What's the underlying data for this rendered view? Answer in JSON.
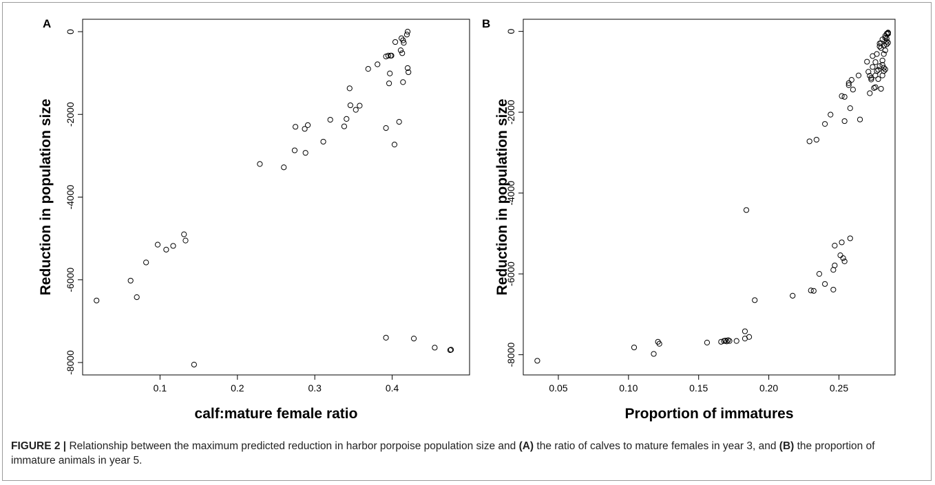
{
  "figure": {
    "caption_label": "FIGURE 2 |",
    "caption_parts": [
      {
        "text": " Relationship between the maximum predicted reduction in harbor porpoise population size and ",
        "bold": false
      },
      {
        "text": "(A)",
        "bold": true
      },
      {
        "text": " the ratio of calves to mature females in year 3, and ",
        "bold": false
      },
      {
        "text": "(B)",
        "bold": true
      },
      {
        "text": " the proportion of immature animals in year 5.",
        "bold": false
      }
    ]
  },
  "chart_data": [
    {
      "type": "scatter",
      "panel": "A",
      "title": "",
      "xlabel": "calf:mature female ratio",
      "ylabel": "Reduction in population size",
      "xlim": [
        0.0,
        0.5
      ],
      "ylim": [
        -8300,
        300
      ],
      "xticks": [
        0.1,
        0.2,
        0.3,
        0.4
      ],
      "yticks": [
        0,
        -2000,
        -4000,
        -6000,
        -8000
      ],
      "grid": false,
      "marker": "open-circle",
      "x": [
        0.018,
        0.062,
        0.07,
        0.082,
        0.097,
        0.108,
        0.117,
        0.131,
        0.133,
        0.144,
        0.229,
        0.26,
        0.274,
        0.275,
        0.287,
        0.288,
        0.291,
        0.311,
        0.32,
        0.338,
        0.341,
        0.345,
        0.346,
        0.353,
        0.358,
        0.369,
        0.381,
        0.392,
        0.392,
        0.395,
        0.396,
        0.397,
        0.398,
        0.399,
        0.403,
        0.404,
        0.409,
        0.411,
        0.412,
        0.413,
        0.414,
        0.414,
        0.415,
        0.419,
        0.42,
        0.42,
        0.421,
        0.392,
        0.428,
        0.455,
        0.475,
        0.476
      ],
      "y": [
        -6500,
        -6020,
        -6420,
        -5580,
        -5150,
        -5270,
        -5180,
        -4900,
        -5050,
        -8050,
        -3200,
        -3280,
        -2870,
        -2300,
        -2350,
        -2930,
        -2260,
        -2660,
        -2130,
        -2290,
        -2110,
        -1370,
        -1780,
        -1890,
        -1790,
        -900,
        -790,
        -2330,
        -600,
        -580,
        -1250,
        -1010,
        -580,
        -580,
        -2730,
        -250,
        -2180,
        -450,
        -160,
        -520,
        -1220,
        -210,
        -270,
        -70,
        0,
        -880,
        -980,
        -7400,
        -7420,
        -7640,
        -7700,
        -7690
      ]
    },
    {
      "type": "scatter",
      "panel": "B",
      "title": "",
      "xlabel": "Proportion of immatures",
      "ylabel": "Reduction in population size",
      "xlim": [
        0.025,
        0.29
      ],
      "ylim": [
        -8500,
        300
      ],
      "xticks": [
        0.05,
        0.1,
        0.15,
        0.2,
        0.25
      ],
      "yticks": [
        0,
        -2000,
        -4000,
        -6000,
        -8000
      ],
      "grid": false,
      "marker": "open-circle",
      "x": [
        0.035,
        0.104,
        0.118,
        0.121,
        0.122,
        0.156,
        0.166,
        0.168,
        0.169,
        0.17,
        0.171,
        0.172,
        0.177,
        0.183,
        0.183,
        0.186,
        0.19,
        0.184,
        0.217,
        0.23,
        0.232,
        0.236,
        0.24,
        0.246,
        0.246,
        0.247,
        0.247,
        0.251,
        0.252,
        0.253,
        0.254,
        0.258,
        0.229,
        0.234,
        0.24,
        0.244,
        0.252,
        0.254,
        0.254,
        0.258,
        0.265,
        0.257,
        0.257,
        0.259,
        0.26,
        0.264,
        0.27,
        0.271,
        0.272,
        0.273,
        0.274,
        0.275,
        0.276,
        0.277,
        0.278,
        0.279,
        0.28,
        0.281,
        0.281,
        0.282,
        0.282,
        0.283,
        0.283,
        0.284,
        0.284,
        0.285,
        0.285,
        0.272,
        0.274,
        0.277,
        0.279,
        0.28,
        0.281,
        0.282,
        0.283,
        0.284,
        0.276,
        0.278,
        0.28,
        0.282,
        0.284,
        0.285,
        0.273,
        0.276,
        0.279,
        0.281,
        0.283,
        0.285
      ],
      "y": [
        -8150,
        -7820,
        -7980,
        -7680,
        -7730,
        -7700,
        -7680,
        -7660,
        -7650,
        -7670,
        -7640,
        -7660,
        -7660,
        -7420,
        -7600,
        -7560,
        -6650,
        -4420,
        -6540,
        -6410,
        -6420,
        -6000,
        -6250,
        -6390,
        -5900,
        -5790,
        -5300,
        -5540,
        -5220,
        -5610,
        -5690,
        -5120,
        -2720,
        -2680,
        -2290,
        -2060,
        -1600,
        -1620,
        -2220,
        -1900,
        -2180,
        -1330,
        -1280,
        -1200,
        -1440,
        -1090,
        -750,
        -1000,
        -1530,
        -1190,
        -880,
        -1400,
        -760,
        -560,
        -1180,
        -860,
        -1420,
        -1090,
        -720,
        -560,
        -900,
        -940,
        -470,
        -320,
        -180,
        -60,
        -40,
        -1100,
        -610,
        -980,
        -370,
        -410,
        -200,
        -350,
        -160,
        -250,
        -1090,
        -950,
        -290,
        -980,
        -60,
        -280,
        -1150,
        -1380,
        -300,
        -830,
        -110,
        -30
      ]
    }
  ]
}
